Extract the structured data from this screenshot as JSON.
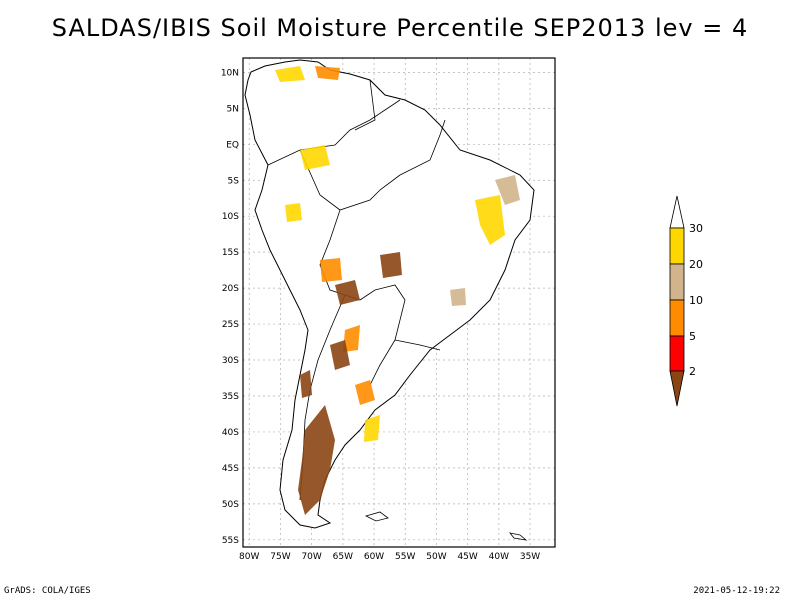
{
  "title": "SALDAS/IBIS Soil Moisture Percentile SEP2013 lev = 4",
  "map": {
    "lat_labels": [
      "10N",
      "5N",
      "EQ",
      "5S",
      "10S",
      "15S",
      "20S",
      "25S",
      "30S",
      "35S",
      "40S",
      "45S",
      "50S",
      "55S"
    ],
    "lon_labels": [
      "80W",
      "75W",
      "70W",
      "65W",
      "60W",
      "55W",
      "50W",
      "45W",
      "40W",
      "35W"
    ]
  },
  "legend": {
    "levels": [
      "2",
      "5",
      "10",
      "20",
      "30"
    ],
    "colors": {
      "lt2": "#8b4513",
      "2-5": "#ff0000",
      "5-10": "#ff8c00",
      "10-20": "#d2b48c",
      "20-30": "#ffd700",
      "gt30": "#ffffff"
    }
  },
  "footer": {
    "left": "GrADS: COLA/IGES",
    "right": "2021-05-12-19:22"
  }
}
